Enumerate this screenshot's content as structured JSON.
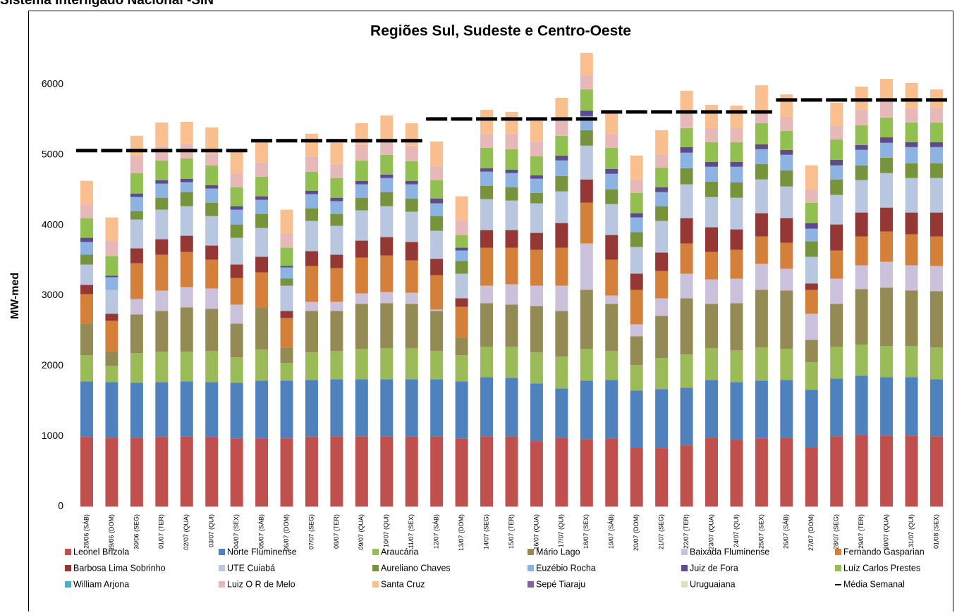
{
  "heading": "Sistema Interligado Nacional -SIN",
  "chart_data": {
    "type": "stacked-bar",
    "title": "Regiões Sul, Sudeste e Centro-Oeste",
    "y_label": "MW-med",
    "categories": [
      "28/06 (SÁB)",
      "29/06 (DOM)",
      "30/06 (SEG)",
      "01/07 (TER)",
      "02/07 (QUA)",
      "03/07 (QUI)",
      "04/07 (SEX)",
      "05/07 (SÁB)",
      "06/07 (DOM)",
      "07/07 (SEG)",
      "08/07 (TER)",
      "09/07 (QUA)",
      "10/07 (QUI)",
      "11/07 (SEX)",
      "12/07 (SÁB)",
      "13/07 (DOM)",
      "14/07 (SEG)",
      "15/07 (TER)",
      "16/07 (QUA)",
      "17/07 (QUI)",
      "18/07 (SEX)",
      "19/07 (SÁB)",
      "20/07 (DOM)",
      "21/07 (SEG)",
      "22/07 (TER)",
      "23/07 (QUA)",
      "24/07 (QUI)",
      "25/07 (SEX)",
      "26/07 (SÁB)",
      "27/07 (DOM)",
      "28/07 (SEG)",
      "29/07 (TER)",
      "30/07 (QUA)",
      "31/07 (QUI)",
      "01/08 (SEX)"
    ],
    "ylim": [
      0,
      6500
    ],
    "yticks": [
      0,
      1000,
      2000,
      3000,
      4000,
      5000,
      6000
    ],
    "grid": false,
    "series": [
      {
        "name": "Leonel Brizola",
        "color": "#c0504d",
        "values": [
          990,
          980,
          980,
          990,
          1000,
          990,
          970,
          970,
          970,
          990,
          1000,
          1000,
          1000,
          1000,
          1000,
          970,
          1000,
          1000,
          930,
          980,
          960,
          970,
          840,
          830,
          870,
          980,
          950,
          970,
          980,
          840,
          1000,
          1020,
          1010,
          1010,
          1000
        ]
      },
      {
        "name": "Norte Fluminense",
        "color": "#4f81bd",
        "values": [
          790,
          790,
          780,
          780,
          780,
          780,
          790,
          820,
          820,
          810,
          810,
          810,
          810,
          810,
          810,
          810,
          840,
          830,
          820,
          700,
          830,
          830,
          810,
          840,
          820,
          820,
          820,
          820,
          820,
          820,
          820,
          840,
          830,
          830,
          810
        ]
      },
      {
        "name": "Araucária",
        "color": "#9bbb59",
        "values": [
          370,
          230,
          420,
          430,
          420,
          440,
          360,
          440,
          250,
          390,
          400,
          430,
          440,
          440,
          400,
          370,
          430,
          440,
          440,
          450,
          450,
          410,
          360,
          440,
          470,
          450,
          450,
          470,
          440,
          390,
          450,
          440,
          440,
          440,
          450
        ]
      },
      {
        "name": "Mário Lago",
        "color": "#948a54",
        "values": [
          450,
          210,
          550,
          580,
          630,
          600,
          480,
          600,
          220,
          590,
          570,
          640,
          640,
          630,
          570,
          250,
          620,
          600,
          660,
          650,
          840,
          670,
          410,
          600,
          800,
          630,
          670,
          820,
          830,
          320,
          610,
          790,
          830,
          790,
          800
        ]
      },
      {
        "name": "Baixada Fluminense",
        "color": "#ccc1da",
        "values": [
          0,
          0,
          220,
          290,
          290,
          290,
          270,
          0,
          0,
          130,
          130,
          150,
          160,
          160,
          20,
          0,
          250,
          290,
          290,
          360,
          660,
          120,
          170,
          250,
          350,
          350,
          350,
          370,
          310,
          370,
          360,
          340,
          370,
          360,
          360
        ]
      },
      {
        "name": "Fernando Gasparian",
        "color": "#d4803a",
        "values": [
          420,
          430,
          510,
          510,
          500,
          410,
          380,
          500,
          420,
          510,
          480,
          510,
          520,
          460,
          490,
          440,
          540,
          520,
          510,
          540,
          580,
          510,
          490,
          390,
          430,
          390,
          410,
          390,
          370,
          340,
          400,
          410,
          430,
          440,
          420
        ]
      },
      {
        "name": "Barbosa Lima Sobrinho",
        "color": "#953735",
        "values": [
          130,
          100,
          210,
          220,
          230,
          200,
          190,
          220,
          100,
          210,
          190,
          240,
          260,
          260,
          230,
          120,
          250,
          250,
          240,
          350,
          330,
          350,
          230,
          260,
          360,
          350,
          290,
          330,
          350,
          90,
          370,
          340,
          340,
          310,
          340
        ]
      },
      {
        "name": "UTE Cuiabá",
        "color": "#b9c6e0",
        "values": [
          290,
          340,
          410,
          420,
          420,
          420,
          380,
          410,
          360,
          430,
          410,
          430,
          440,
          430,
          400,
          350,
          440,
          420,
          420,
          450,
          480,
          440,
          380,
          450,
          480,
          430,
          450,
          480,
          450,
          380,
          420,
          460,
          490,
          490,
          490
        ]
      },
      {
        "name": "Aureliano Chaves",
        "color": "#77933c",
        "values": [
          140,
          0,
          120,
          170,
          200,
          190,
          190,
          200,
          100,
          180,
          170,
          180,
          200,
          190,
          210,
          180,
          190,
          190,
          150,
          220,
          220,
          210,
          210,
          210,
          230,
          220,
          220,
          220,
          230,
          220,
          220,
          210,
          220,
          210,
          210
        ]
      },
      {
        "name": "Euzébio Rocha",
        "color": "#8db3e2",
        "values": [
          180,
          180,
          200,
          200,
          140,
          200,
          210,
          200,
          160,
          200,
          180,
          190,
          200,
          200,
          180,
          150,
          200,
          200,
          200,
          220,
          200,
          220,
          210,
          200,
          220,
          210,
          220,
          210,
          220,
          180,
          200,
          220,
          210,
          230,
          230
        ]
      },
      {
        "name": "Juiz de Fora",
        "color": "#5f4b8b",
        "values": [
          60,
          20,
          50,
          50,
          50,
          50,
          50,
          50,
          20,
          50,
          50,
          50,
          50,
          50,
          70,
          40,
          50,
          50,
          50,
          70,
          80,
          70,
          60,
          70,
          80,
          70,
          70,
          70,
          70,
          80,
          80,
          70,
          80,
          70,
          70
        ]
      },
      {
        "name": "Luíz Carlos Prestes",
        "color": "#92c050",
        "values": [
          280,
          280,
          290,
          280,
          290,
          280,
          270,
          280,
          260,
          270,
          280,
          290,
          280,
          280,
          260,
          180,
          290,
          290,
          270,
          280,
          300,
          300,
          290,
          280,
          270,
          280,
          280,
          300,
          270,
          290,
          290,
          280,
          280,
          280,
          280
        ]
      },
      {
        "name": "William Arjona",
        "color": "#4bacc6",
        "values": [
          0,
          0,
          0,
          0,
          0,
          0,
          0,
          0,
          0,
          0,
          0,
          0,
          0,
          0,
          0,
          0,
          0,
          0,
          0,
          0,
          0,
          0,
          0,
          0,
          0,
          0,
          0,
          0,
          0,
          0,
          0,
          0,
          0,
          0,
          0
        ]
      },
      {
        "name": "Luiz O R de Melo",
        "color": "#e6b9b8",
        "values": [
          200,
          220,
          240,
          200,
          210,
          170,
          200,
          200,
          210,
          220,
          200,
          220,
          220,
          220,
          200,
          210,
          200,
          220,
          210,
          230,
          200,
          200,
          190,
          190,
          210,
          200,
          200,
          150,
          200,
          190,
          200,
          220,
          230,
          200,
          210
        ]
      },
      {
        "name": "Santa Cruz",
        "color": "#fabf8f",
        "values": [
          330,
          330,
          290,
          340,
          310,
          370,
          300,
          300,
          330,
          320,
          300,
          310,
          340,
          320,
          350,
          340,
          340,
          310,
          290,
          310,
          320,
          300,
          340,
          340,
          320,
          330,
          320,
          390,
          320,
          340,
          320,
          330,
          320,
          360,
          260
        ]
      },
      {
        "name": "Sepé Tiaraju",
        "color": "#8064a2",
        "values": [
          0,
          0,
          0,
          0,
          0,
          0,
          0,
          0,
          0,
          0,
          0,
          0,
          0,
          0,
          0,
          0,
          0,
          0,
          0,
          0,
          0,
          0,
          0,
          0,
          0,
          0,
          0,
          0,
          0,
          0,
          0,
          0,
          0,
          0,
          0
        ]
      },
      {
        "name": "Uruguaiana",
        "color": "#d7e4bd",
        "values": [
          0,
          0,
          0,
          0,
          0,
          0,
          0,
          0,
          0,
          0,
          0,
          0,
          0,
          0,
          0,
          0,
          0,
          0,
          0,
          0,
          0,
          0,
          0,
          0,
          0,
          0,
          0,
          0,
          0,
          0,
          0,
          0,
          0,
          0,
          0
        ]
      }
    ],
    "average": {
      "name": "Média Semanal",
      "color": "#000000",
      "values": [
        5060,
        5060,
        5060,
        5060,
        5060,
        5060,
        5060,
        5200,
        5200,
        5200,
        5200,
        5200,
        5200,
        5200,
        5510,
        5510,
        5510,
        5510,
        5510,
        5510,
        5510,
        5610,
        5610,
        5610,
        5610,
        5610,
        5610,
        5610,
        5780,
        5780,
        5780,
        5780,
        5780,
        5780,
        5780
      ]
    }
  }
}
